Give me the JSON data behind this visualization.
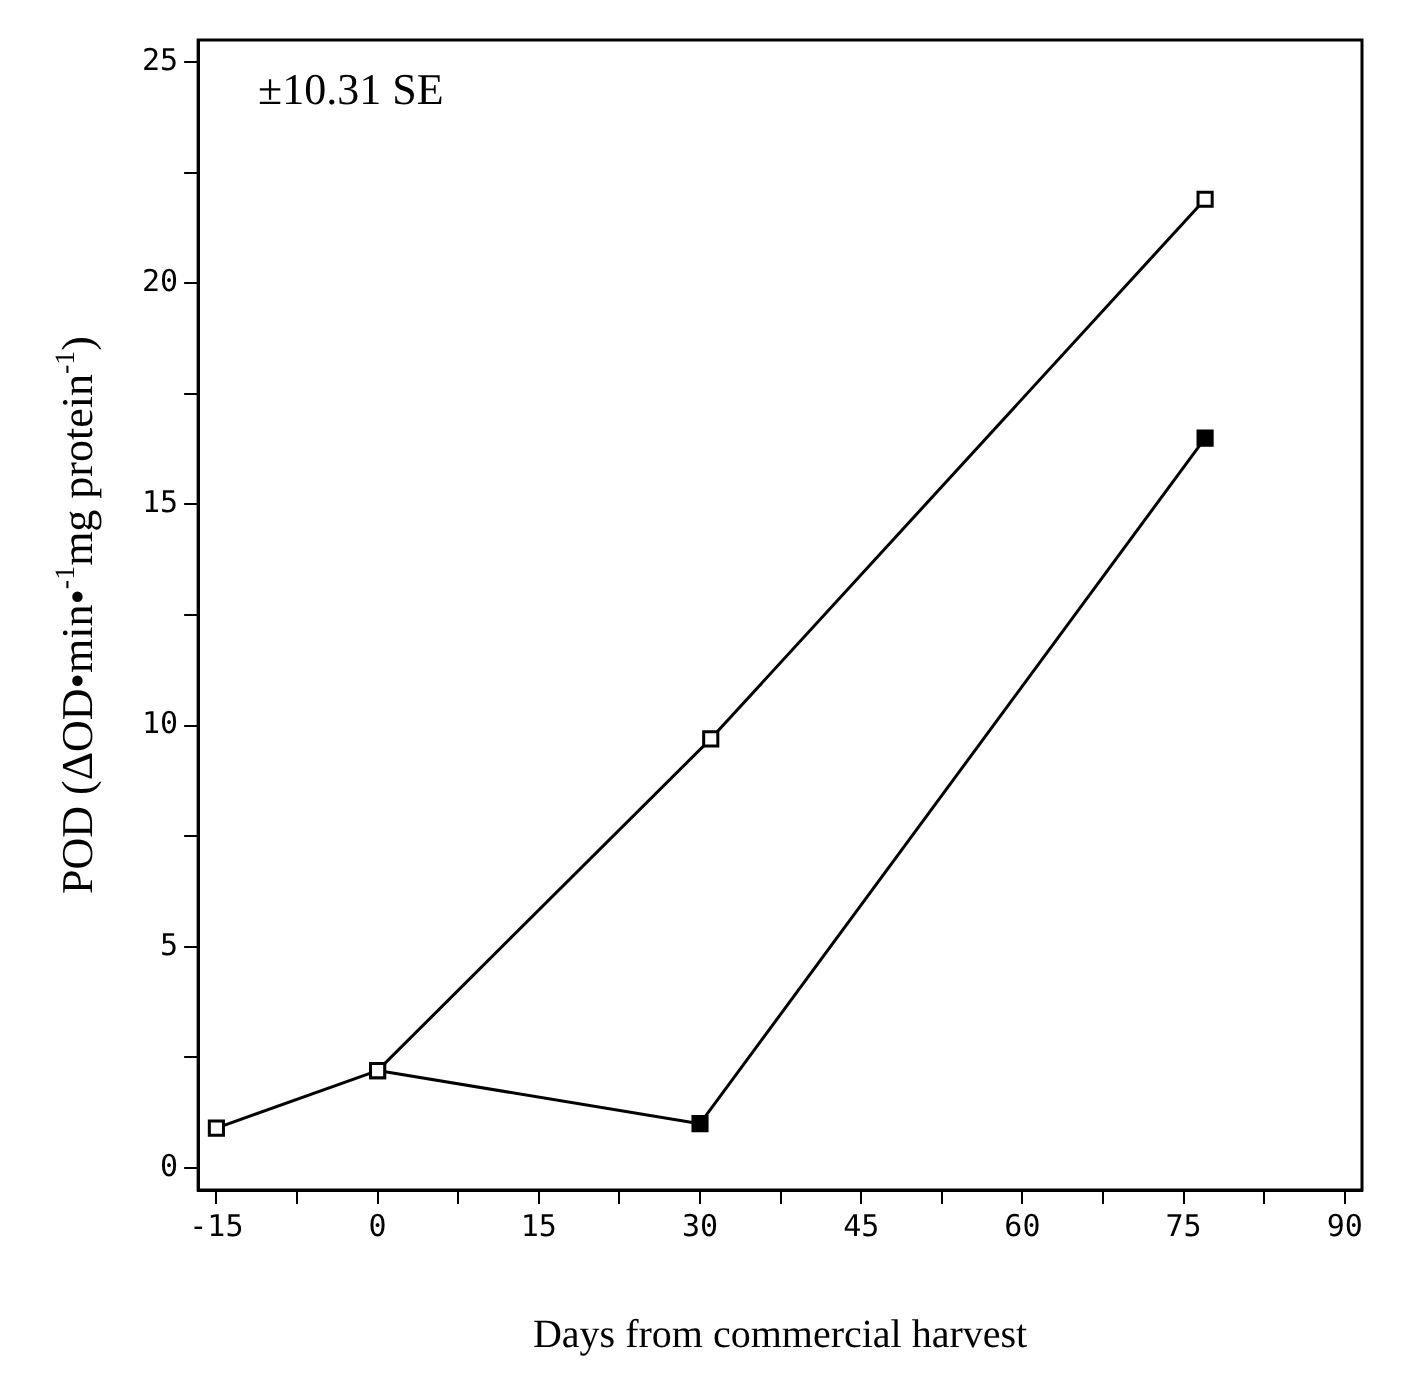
{
  "chart_data": {
    "type": "line",
    "xlabel": "Days from commercial harvest",
    "ylabel": "POD (ΔOD•min•$^{-1}$mg protein$^{-1}$)",
    "annotations": [
      "±10.31 SE"
    ],
    "series": [
      {
        "color": "#000000",
        "x": [
          -15,
          0,
          31,
          77
        ],
        "values": [
          0.9,
          2.2,
          9.7,
          21.9
        ]
      },
      {
        "color": "#000000",
        "x": [
          0,
          30,
          77
        ],
        "values": [
          2.2,
          1.0,
          16.5
        ]
      }
    ],
    "xlim": [
      -16.7,
      91.6
    ],
    "xticks": [
      -15,
      {
        "value": -7.5,
        "label": null
      },
      0,
      {
        "value": 7.5,
        "label": null
      },
      15,
      {
        "value": 22.5,
        "label": null
      },
      30,
      {
        "value": 37.5,
        "label": null
      },
      45,
      {
        "value": 52.5,
        "label": null
      },
      60,
      {
        "value": 67.5,
        "label": null
      },
      75,
      {
        "value": 82.5,
        "label": null
      },
      90
    ],
    "ylim": [
      -0.5,
      25.5
    ],
    "yticks": [
      0,
      {
        "value": 2.5,
        "label": null
      },
      5,
      {
        "value": 7.5,
        "label": null
      },
      10,
      {
        "value": 12.5,
        "label": null
      },
      15,
      {
        "value": 17.5,
        "label": null
      },
      20,
      {
        "value": 22.5,
        "label": null
      },
      25
    ],
    "grid": false,
    "legend": false,
    "marker": "square",
    "line_style": "solid"
  }
}
